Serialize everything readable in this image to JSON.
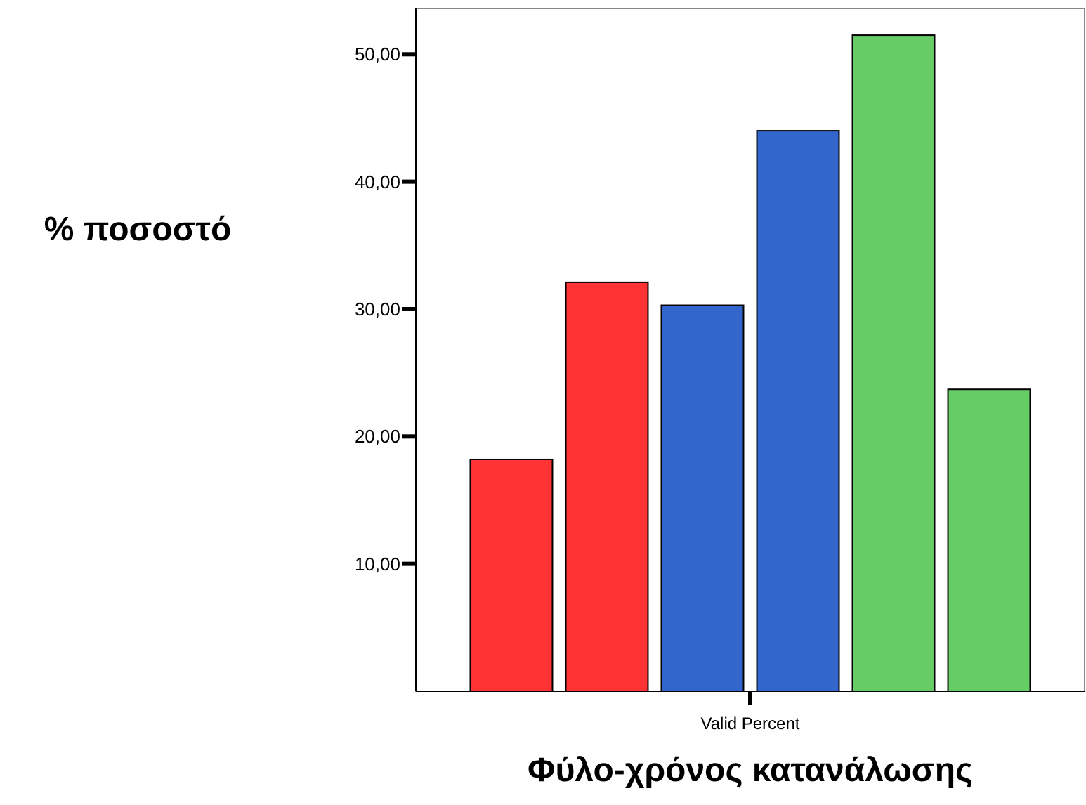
{
  "chart_data": {
    "type": "bar",
    "xlabel": "Φύλο-χρόνος κατανάλωσης",
    "ylabel": "% ποσοστό",
    "categories": [
      "Valid Percent"
    ],
    "series": [
      {
        "color": "#ff3333",
        "values": [
          18.2
        ]
      },
      {
        "color": "#ff3333",
        "values": [
          32.1
        ]
      },
      {
        "color": "#3366cc",
        "values": [
          30.3
        ]
      },
      {
        "color": "#3366cc",
        "values": [
          44.0
        ]
      },
      {
        "color": "#66cc66",
        "values": [
          51.5
        ]
      },
      {
        "color": "#66cc66",
        "values": [
          23.7
        ]
      }
    ],
    "ylim": [
      0,
      53.6
    ],
    "yticks": [
      {
        "value": 10,
        "label": "10,00"
      },
      {
        "value": 20,
        "label": "20,00"
      },
      {
        "value": 30,
        "label": "30,00"
      },
      {
        "value": 40,
        "label": "40,00"
      },
      {
        "value": 50,
        "label": "50,00"
      }
    ],
    "grid": false
  }
}
